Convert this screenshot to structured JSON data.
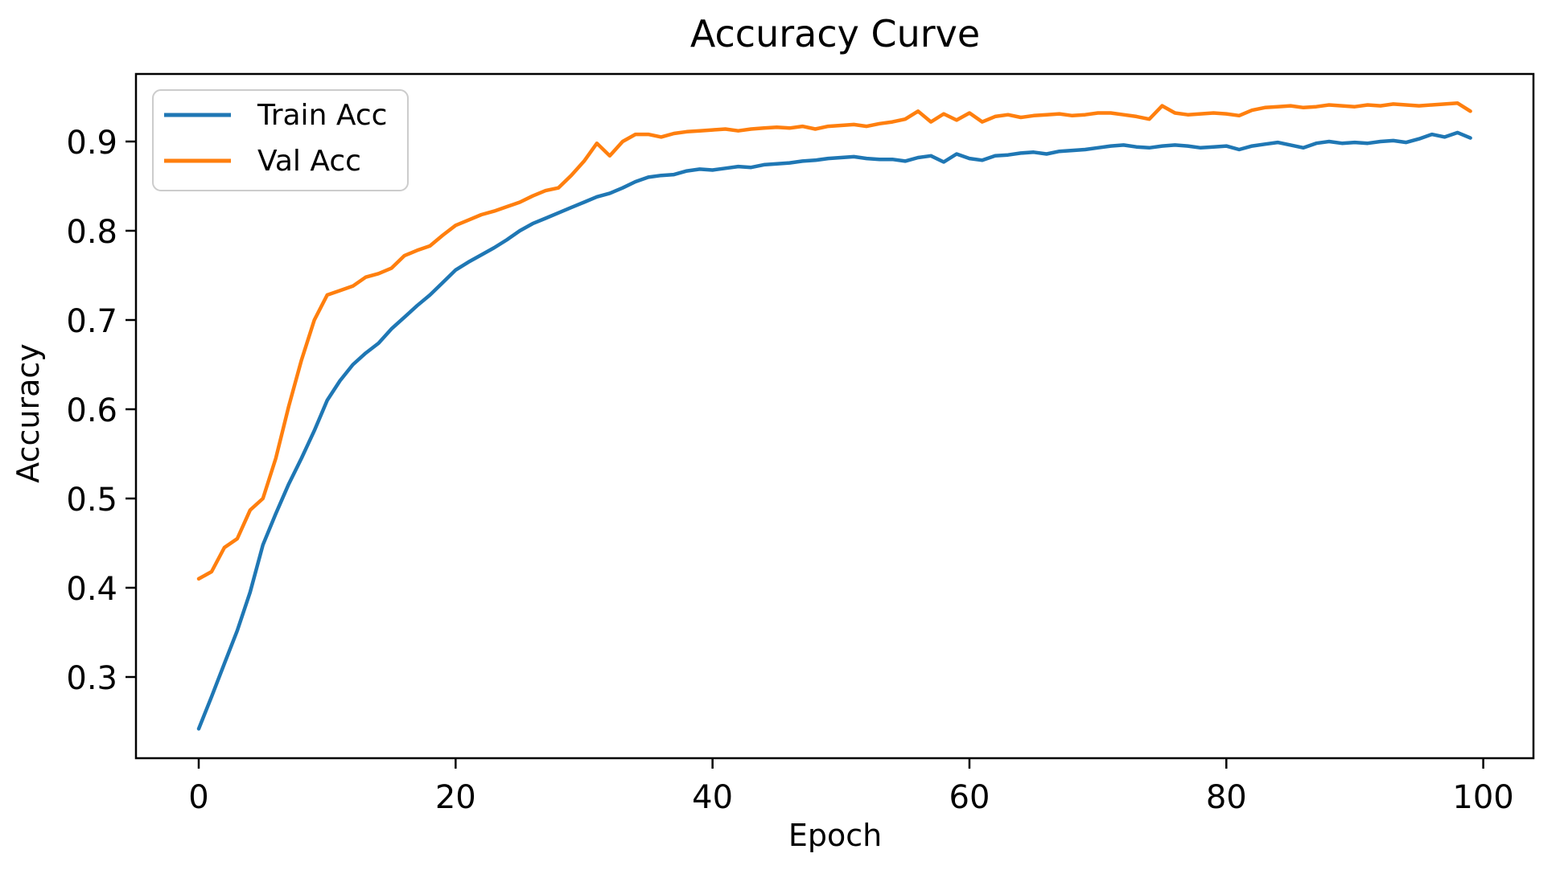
{
  "figure": {
    "background": "#ffffff"
  },
  "chart_data": {
    "type": "line",
    "title": "Accuracy Curve",
    "xlabel": "Epoch",
    "ylabel": "Accuracy",
    "grid": false,
    "legend_position": "upper left",
    "xlim": [
      -4.8,
      103.9
    ],
    "ylim": [
      0.208,
      0.976
    ],
    "x_ticks": {
      "values": [
        0,
        20,
        40,
        60,
        80,
        100
      ],
      "labels": [
        "0",
        "20",
        "40",
        "60",
        "80",
        "100"
      ]
    },
    "y_ticks": {
      "values": [
        0.3,
        0.4,
        0.5,
        0.6,
        0.7,
        0.8,
        0.9
      ],
      "labels": [
        "0.3",
        "0.4",
        "0.5",
        "0.6",
        "0.7",
        "0.8",
        "0.9"
      ]
    },
    "x": [
      0,
      1,
      2,
      3,
      4,
      5,
      6,
      7,
      8,
      9,
      10,
      11,
      12,
      13,
      14,
      15,
      16,
      17,
      18,
      19,
      20,
      21,
      22,
      23,
      24,
      25,
      26,
      27,
      28,
      29,
      30,
      31,
      32,
      33,
      34,
      35,
      36,
      37,
      38,
      39,
      40,
      41,
      42,
      43,
      44,
      45,
      46,
      47,
      48,
      49,
      50,
      51,
      52,
      53,
      54,
      55,
      56,
      57,
      58,
      59,
      60,
      61,
      62,
      63,
      64,
      65,
      66,
      67,
      68,
      69,
      70,
      71,
      72,
      73,
      74,
      75,
      76,
      77,
      78,
      79,
      80,
      81,
      82,
      83,
      84,
      85,
      86,
      87,
      88,
      89,
      90,
      91,
      92,
      93,
      94,
      95,
      96,
      97,
      98,
      99
    ],
    "series": [
      {
        "name": "Train Acc",
        "color": "#1f77b4",
        "values": [
          0.242,
          0.278,
          0.315,
          0.352,
          0.395,
          0.448,
          0.483,
          0.516,
          0.545,
          0.576,
          0.61,
          0.632,
          0.65,
          0.663,
          0.674,
          0.69,
          0.703,
          0.716,
          0.728,
          0.742,
          0.756,
          0.765,
          0.773,
          0.781,
          0.79,
          0.8,
          0.808,
          0.814,
          0.82,
          0.826,
          0.832,
          0.838,
          0.842,
          0.848,
          0.855,
          0.86,
          0.862,
          0.863,
          0.867,
          0.869,
          0.868,
          0.87,
          0.872,
          0.871,
          0.874,
          0.875,
          0.876,
          0.878,
          0.879,
          0.881,
          0.882,
          0.883,
          0.881,
          0.88,
          0.88,
          0.878,
          0.882,
          0.884,
          0.877,
          0.886,
          0.881,
          0.879,
          0.884,
          0.885,
          0.887,
          0.888,
          0.886,
          0.889,
          0.89,
          0.891,
          0.893,
          0.895,
          0.896,
          0.894,
          0.893,
          0.895,
          0.896,
          0.895,
          0.893,
          0.894,
          0.895,
          0.891,
          0.895,
          0.897,
          0.899,
          0.896,
          0.893,
          0.898,
          0.9,
          0.898,
          0.899,
          0.898,
          0.9,
          0.901,
          0.899,
          0.903,
          0.908,
          0.905,
          0.91,
          0.904
        ]
      },
      {
        "name": "Val Acc",
        "color": "#ff7f0e",
        "values": [
          0.41,
          0.418,
          0.445,
          0.455,
          0.487,
          0.5,
          0.545,
          0.603,
          0.655,
          0.7,
          0.728,
          0.733,
          0.738,
          0.748,
          0.752,
          0.758,
          0.772,
          0.778,
          0.783,
          0.795,
          0.806,
          0.812,
          0.818,
          0.822,
          0.827,
          0.832,
          0.839,
          0.845,
          0.848,
          0.862,
          0.878,
          0.898,
          0.884,
          0.9,
          0.908,
          0.908,
          0.905,
          0.909,
          0.911,
          0.912,
          0.913,
          0.914,
          0.912,
          0.914,
          0.915,
          0.916,
          0.915,
          0.917,
          0.914,
          0.917,
          0.918,
          0.919,
          0.917,
          0.92,
          0.922,
          0.925,
          0.934,
          0.922,
          0.931,
          0.924,
          0.932,
          0.922,
          0.928,
          0.93,
          0.927,
          0.929,
          0.93,
          0.931,
          0.929,
          0.93,
          0.932,
          0.932,
          0.93,
          0.928,
          0.925,
          0.94,
          0.932,
          0.93,
          0.931,
          0.932,
          0.931,
          0.929,
          0.935,
          0.938,
          0.939,
          0.94,
          0.938,
          0.939,
          0.941,
          0.94,
          0.939,
          0.941,
          0.94,
          0.942,
          0.941,
          0.94,
          0.941,
          0.942,
          0.943,
          0.934
        ]
      }
    ]
  }
}
